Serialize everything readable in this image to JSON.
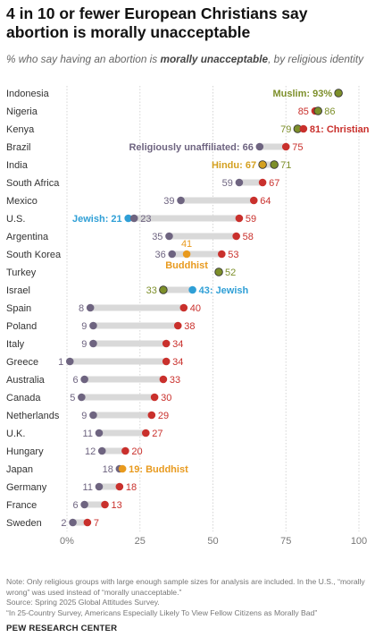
{
  "title": "4 in 10 or fewer European Christians say abortion is morally unacceptable",
  "subtitle": {
    "prefix": "% who say having an abortion is ",
    "emphasis": "morally unacceptable",
    "suffix": ", by religious identity"
  },
  "colors": {
    "christian": "#c9302c",
    "unaffiliated": "#6e6480",
    "muslim": "#7d8f2a",
    "hindu": "#d4a020",
    "buddhist": "#e89a1e",
    "jewish": "#2f9fd6",
    "track": "#d9d9d9",
    "grid": "#d5d5d5"
  },
  "chart_data": {
    "type": "dot",
    "xlim": [
      0,
      100
    ],
    "x_ticks": [
      "0%",
      "25",
      "50",
      "75",
      "100"
    ],
    "x_tick_values": [
      0,
      25,
      50,
      75,
      100
    ],
    "groups": {
      "christian": "Christian",
      "unaffiliated": "Religiously unaffiliated",
      "muslim": "Muslim",
      "hindu": "Hindu",
      "buddhist": "Buddhist",
      "jewish": "Jewish"
    },
    "rows": [
      {
        "country": "Indonesia",
        "points": [
          {
            "g": "muslim",
            "v": 93,
            "label": "Muslim: 93%",
            "side": "L"
          }
        ]
      },
      {
        "country": "Nigeria",
        "points": [
          {
            "g": "christian",
            "v": 85,
            "label": "85",
            "side": "L"
          },
          {
            "g": "muslim",
            "v": 86,
            "label": "86",
            "side": "R"
          }
        ]
      },
      {
        "country": "Kenya",
        "points": [
          {
            "g": "muslim",
            "v": 79,
            "label": "79",
            "side": "L"
          },
          {
            "g": "christian",
            "v": 81,
            "label": "81: Christian",
            "side": "R"
          }
        ]
      },
      {
        "country": "Brazil",
        "points": [
          {
            "g": "unaffiliated",
            "v": 66,
            "label": "Religiously unaffiliated: 66",
            "side": "L"
          },
          {
            "g": "christian",
            "v": 75,
            "label": "75",
            "side": "R"
          }
        ]
      },
      {
        "country": "India",
        "points": [
          {
            "g": "hindu",
            "v": 67,
            "label": "Hindu: 67",
            "side": "L"
          },
          {
            "g": "muslim",
            "v": 71,
            "label": "71",
            "side": "R"
          }
        ]
      },
      {
        "country": "South Africa",
        "points": [
          {
            "g": "unaffiliated",
            "v": 59,
            "label": "59",
            "side": "L"
          },
          {
            "g": "christian",
            "v": 67,
            "label": "67",
            "side": "R"
          }
        ]
      },
      {
        "country": "Mexico",
        "points": [
          {
            "g": "unaffiliated",
            "v": 39,
            "label": "39",
            "side": "L"
          },
          {
            "g": "christian",
            "v": 64,
            "label": "64",
            "side": "R"
          }
        ]
      },
      {
        "country": "U.S.",
        "points": [
          {
            "g": "jewish",
            "v": 21,
            "label": "Jewish: 21",
            "side": "L"
          },
          {
            "g": "unaffiliated",
            "v": 23,
            "label": "23",
            "side": "R"
          },
          {
            "g": "christian",
            "v": 59,
            "label": "59",
            "side": "R"
          }
        ]
      },
      {
        "country": "Argentina",
        "points": [
          {
            "g": "unaffiliated",
            "v": 35,
            "label": "35",
            "side": "L"
          },
          {
            "g": "christian",
            "v": 58,
            "label": "58",
            "side": "R"
          }
        ]
      },
      {
        "country": "South Korea",
        "points": [
          {
            "g": "unaffiliated",
            "v": 36,
            "label": "36",
            "side": "L"
          },
          {
            "g": "buddhist",
            "v": 41,
            "label": "41",
            "side": "U",
            "label2": "Buddhist"
          },
          {
            "g": "christian",
            "v": 53,
            "label": "53",
            "side": "R"
          }
        ]
      },
      {
        "country": "Turkey",
        "points": [
          {
            "g": "muslim",
            "v": 52,
            "label": "52",
            "side": "R"
          }
        ]
      },
      {
        "country": "Israel",
        "points": [
          {
            "g": "muslim",
            "v": 33,
            "label": "33",
            "side": "L"
          },
          {
            "g": "jewish",
            "v": 43,
            "label": "43: Jewish",
            "side": "R"
          }
        ]
      },
      {
        "country": "Spain",
        "points": [
          {
            "g": "unaffiliated",
            "v": 8,
            "label": "8",
            "side": "L"
          },
          {
            "g": "christian",
            "v": 40,
            "label": "40",
            "side": "R"
          }
        ]
      },
      {
        "country": "Poland",
        "points": [
          {
            "g": "unaffiliated",
            "v": 9,
            "label": "9",
            "side": "L"
          },
          {
            "g": "christian",
            "v": 38,
            "label": "38",
            "side": "R"
          }
        ]
      },
      {
        "country": "Italy",
        "points": [
          {
            "g": "unaffiliated",
            "v": 9,
            "label": "9",
            "side": "L"
          },
          {
            "g": "christian",
            "v": 34,
            "label": "34",
            "side": "R"
          }
        ]
      },
      {
        "country": "Greece",
        "points": [
          {
            "g": "unaffiliated",
            "v": 1,
            "label": "1",
            "side": "L"
          },
          {
            "g": "christian",
            "v": 34,
            "label": "34",
            "side": "R"
          }
        ]
      },
      {
        "country": "Australia",
        "points": [
          {
            "g": "unaffiliated",
            "v": 6,
            "label": "6",
            "side": "L"
          },
          {
            "g": "christian",
            "v": 33,
            "label": "33",
            "side": "R"
          }
        ]
      },
      {
        "country": "Canada",
        "points": [
          {
            "g": "unaffiliated",
            "v": 5,
            "label": "5",
            "side": "L"
          },
          {
            "g": "christian",
            "v": 30,
            "label": "30",
            "side": "R"
          }
        ]
      },
      {
        "country": "Netherlands",
        "points": [
          {
            "g": "unaffiliated",
            "v": 9,
            "label": "9",
            "side": "L"
          },
          {
            "g": "christian",
            "v": 29,
            "label": "29",
            "side": "R"
          }
        ]
      },
      {
        "country": "U.K.",
        "points": [
          {
            "g": "unaffiliated",
            "v": 11,
            "label": "11",
            "side": "L"
          },
          {
            "g": "christian",
            "v": 27,
            "label": "27",
            "side": "R"
          }
        ]
      },
      {
        "country": "Hungary",
        "points": [
          {
            "g": "unaffiliated",
            "v": 12,
            "label": "12",
            "side": "L"
          },
          {
            "g": "christian",
            "v": 20,
            "label": "20",
            "side": "R"
          }
        ]
      },
      {
        "country": "Japan",
        "points": [
          {
            "g": "unaffiliated",
            "v": 18,
            "label": "18",
            "side": "L"
          },
          {
            "g": "buddhist",
            "v": 19,
            "label": "19: Buddhist",
            "side": "R"
          }
        ]
      },
      {
        "country": "Germany",
        "points": [
          {
            "g": "unaffiliated",
            "v": 11,
            "label": "11",
            "side": "L"
          },
          {
            "g": "christian",
            "v": 18,
            "label": "18",
            "side": "R"
          }
        ]
      },
      {
        "country": "France",
        "points": [
          {
            "g": "unaffiliated",
            "v": 6,
            "label": "6",
            "side": "L"
          },
          {
            "g": "christian",
            "v": 13,
            "label": "13",
            "side": "R"
          }
        ]
      },
      {
        "country": "Sweden",
        "points": [
          {
            "g": "unaffiliated",
            "v": 2,
            "label": "2",
            "side": "L"
          },
          {
            "g": "christian",
            "v": 7,
            "label": "7",
            "side": "R"
          }
        ]
      }
    ]
  },
  "footer": {
    "note": "Note: Only religious groups with large enough sample sizes for analysis are included. In the U.S., “morally wrong” was used instead of “morally unacceptable.”",
    "source": "Source: Spring 2025 Global Attitudes Survey.",
    "report": "“In 25-Country Survey, Americans Especially Likely To View Fellow Citizens as Morally Bad”"
  },
  "brand": "PEW RESEARCH CENTER"
}
